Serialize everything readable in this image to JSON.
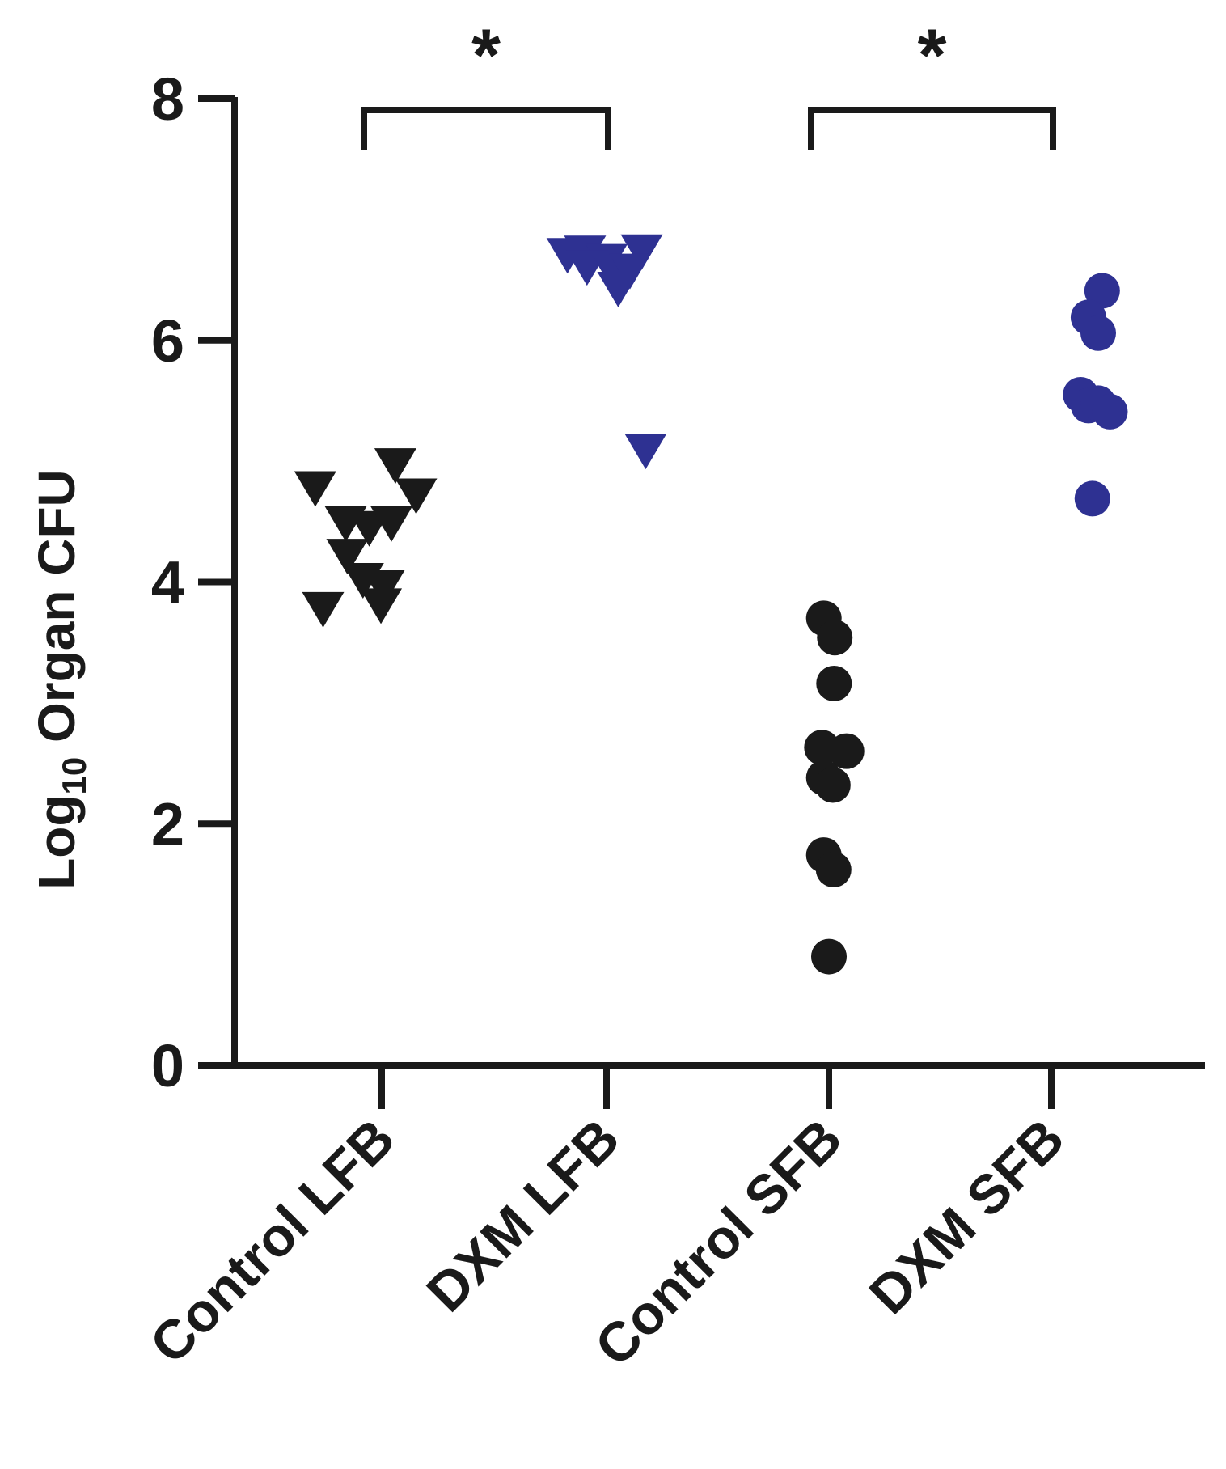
{
  "chart_data": {
    "type": "scatter",
    "ylabel": {
      "base": "Log",
      "sub": "10",
      "rest": " Organ CFU"
    },
    "ylim": [
      0,
      8
    ],
    "yticks": [
      0,
      2,
      4,
      6,
      8
    ],
    "grid": false,
    "categories": [
      "Control LFB",
      "DXM LFB",
      "Control SFB",
      "DXM SFB"
    ],
    "colors": {
      "control": "#1a1a1a",
      "dxm": "#2e3192"
    },
    "groups": [
      {
        "category": "Control LFB",
        "marker": "triangle-down",
        "color": "#1a1a1a",
        "points": [
          {
            "x": 3.35,
            "y": 4.96
          },
          {
            "x": 3.88,
            "y": 4.71
          },
          {
            "x": 1.3,
            "y": 4.77
          },
          {
            "x": 2.08,
            "y": 4.48
          },
          {
            "x": 2.68,
            "y": 4.44
          },
          {
            "x": 3.25,
            "y": 4.48
          },
          {
            "x": 2.12,
            "y": 4.21
          },
          {
            "x": 2.52,
            "y": 4.01
          },
          {
            "x": 3.05,
            "y": 3.95
          },
          {
            "x": 2.98,
            "y": 3.8
          },
          {
            "x": 1.5,
            "y": 3.77
          }
        ]
      },
      {
        "category": "DXM LFB",
        "marker": "triangle-down",
        "color": "#2e3192",
        "points": [
          {
            "x": 2.0,
            "y": 6.7
          },
          {
            "x": 2.45,
            "y": 6.72
          },
          {
            "x": 3.0,
            "y": 6.65
          },
          {
            "x": 3.9,
            "y": 6.73
          },
          {
            "x": 2.5,
            "y": 6.6
          },
          {
            "x": 3.2,
            "y": 6.55
          },
          {
            "x": 3.6,
            "y": 6.57
          },
          {
            "x": 3.3,
            "y": 6.42
          },
          {
            "x": 4.0,
            "y": 5.08
          }
        ]
      },
      {
        "category": "Control SFB",
        "marker": "circle",
        "color": "#1a1a1a",
        "points": [
          {
            "x": 2.87,
            "y": 3.7
          },
          {
            "x": 3.15,
            "y": 3.54
          },
          {
            "x": 3.13,
            "y": 3.16
          },
          {
            "x": 2.82,
            "y": 2.63
          },
          {
            "x": 3.45,
            "y": 2.6
          },
          {
            "x": 2.87,
            "y": 2.38
          },
          {
            "x": 3.1,
            "y": 2.32
          },
          {
            "x": 2.87,
            "y": 1.74
          },
          {
            "x": 3.12,
            "y": 1.62
          },
          {
            "x": 3.0,
            "y": 0.9
          }
        ]
      },
      {
        "category": "DXM SFB",
        "marker": "circle",
        "color": "#2e3192",
        "points": [
          {
            "x": 4.3,
            "y": 6.41
          },
          {
            "x": 3.95,
            "y": 6.19
          },
          {
            "x": 4.2,
            "y": 6.06
          },
          {
            "x": 3.75,
            "y": 5.55
          },
          {
            "x": 3.95,
            "y": 5.46
          },
          {
            "x": 4.2,
            "y": 5.48
          },
          {
            "x": 4.5,
            "y": 5.41
          },
          {
            "x": 4.05,
            "y": 4.69
          }
        ]
      }
    ],
    "significance": [
      {
        "between": [
          "Control LFB",
          "DXM LFB"
        ],
        "label": "*"
      },
      {
        "between": [
          "Control SFB",
          "DXM SFB"
        ],
        "label": "*"
      }
    ]
  }
}
